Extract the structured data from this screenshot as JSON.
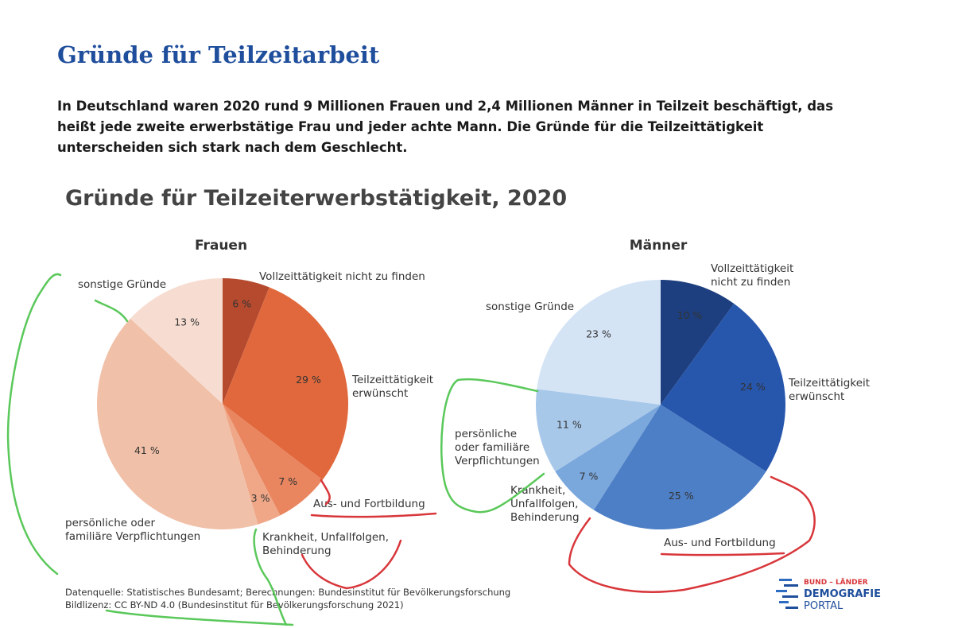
{
  "page": {
    "title": "Gründe für Teilzeitarbeit",
    "intro": "In Deutschland waren 2020 rund 9 Millionen Frauen und 2,4 Millionen Männer in Teilzeit beschäftigt, das heißt jede zweite erwerbstätige Frau und jeder achte Mann. Die Gründe für die Teilzeittätigkeit unterscheiden sich stark nach dem Geschlecht."
  },
  "figure": {
    "title": "Gründe für Teilzeiterwerbstätigkeit, 2020",
    "source_line": "Datenquelle: Statistisches Bundesamt; Berechnungen: Bundesinstitut für Bevölkerungsforschung",
    "license_line": "Bildlizenz: CC BY-ND 4.0 (Bundesinstitut für Bevölkerungsforschung 2021)",
    "logo": {
      "line1": "BUND – LÄNDER",
      "line2": "DEMOGRAFIE",
      "line3": "PORTAL"
    }
  },
  "chart_data": [
    {
      "type": "pie",
      "title": "Frauen",
      "unit": "%",
      "slices": [
        {
          "label": "Vollzeittätigkeit nicht zu finden",
          "value": 6,
          "color": "#b54a2e",
          "value_text": "6 %"
        },
        {
          "label": "Teilzeittätigkeit erwünscht",
          "value": 29,
          "color": "#e0683c",
          "value_text": "29 %"
        },
        {
          "label": "Aus- und Fortbildung",
          "value": 7,
          "color": "#e98660",
          "value_text": "7 %"
        },
        {
          "label": "Krankheit, Unfallfolgen, Behinderung",
          "value": 3,
          "color": "#efa787",
          "value_text": "3 %"
        },
        {
          "label": "persönliche oder familiäre Verpflichtungen",
          "value": 41,
          "color": "#f1c0a8",
          "value_text": "41 %"
        },
        {
          "label": "sonstige Gründe",
          "value": 13,
          "color": "#f7ddd1",
          "value_text": "13 %"
        }
      ]
    },
    {
      "type": "pie",
      "title": "Männer",
      "unit": "%",
      "slices": [
        {
          "label": "Vollzeittätigkeit nicht zu finden",
          "value": 10,
          "color": "#1d3f7f",
          "value_text": "10 %"
        },
        {
          "label": "Teilzeittätigkeit erwünscht",
          "value": 24,
          "color": "#2756ad",
          "value_text": "24 %"
        },
        {
          "label": "Aus- und Fortbildung",
          "value": 25,
          "color": "#4d7fc6",
          "value_text": "25 %"
        },
        {
          "label": "Krankheit, Unfallfolgen, Behinderung",
          "value": 7,
          "color": "#7aa7dc",
          "value_text": "7 %"
        },
        {
          "label": "persönliche oder familiäre Verpflichtungen",
          "value": 11,
          "color": "#a8c8ea",
          "value_text": "11 %"
        },
        {
          "label": "sonstige Gründe",
          "value": 23,
          "color": "#d4e4f5",
          "value_text": "23 %"
        }
      ]
    }
  ],
  "outer_labels": {
    "frauen": {
      "vollzeit": [
        "Vollzeittätigkeit nicht zu finden"
      ],
      "teilzeit": [
        "Teilzeittätigkeit",
        "erwünscht"
      ],
      "ausbildung": [
        "Aus- und Fortbildung"
      ],
      "krankheit": [
        "Krankheit, Unfallfolgen,",
        "Behinderung"
      ],
      "familie": [
        "persönliche oder",
        "familiäre Verpflichtungen"
      ],
      "sonstige": [
        "sonstige Gründe"
      ]
    },
    "maenner": {
      "vollzeit": [
        "Vollzeittätigkeit",
        "nicht zu finden"
      ],
      "teilzeit": [
        "Teilzeittätigkeit",
        "erwünscht"
      ],
      "ausbildung": [
        "Aus- und Fortbildung"
      ],
      "krankheit": [
        "Krankheit,",
        "Unfallfolgen,",
        "Behinderung"
      ],
      "familie": [
        "persönliche",
        "oder familiäre",
        "Verpflichtungen"
      ],
      "sonstige": [
        "sonstige Gründe"
      ]
    }
  }
}
